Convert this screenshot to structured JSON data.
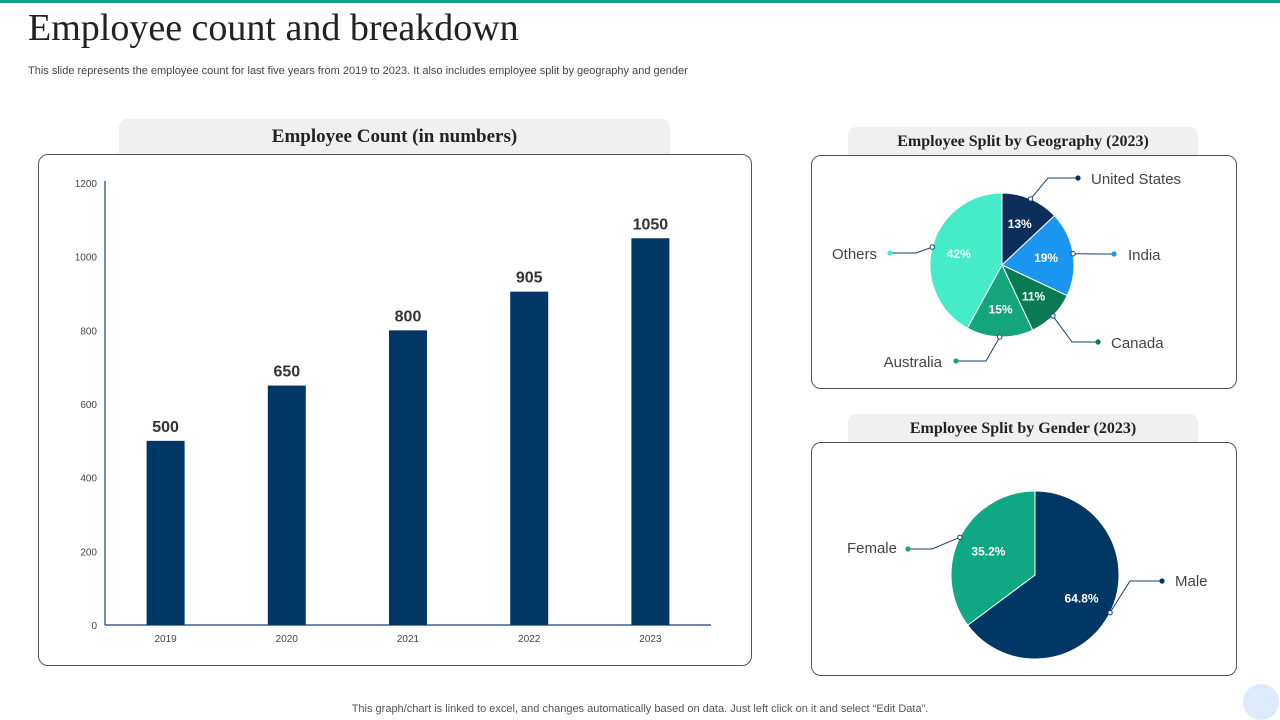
{
  "header": {
    "title": "Employee count and breakdown",
    "subtitle": "This slide represents the employee count for last five years from 2019 to 2023. It also includes employee split by geography and gender"
  },
  "footer": {
    "note": "This graph/chart is linked to excel,  and changes automatically based on data. Just left click on it and select “Edit Data”."
  },
  "colors": {
    "accent": "#0ea58a",
    "bar": "#003764",
    "us": "#0d2d5a",
    "india": "#1a96f0",
    "canada": "#0a7a55",
    "australia": "#14a57c",
    "others": "#46ecca",
    "male": "#003764",
    "female": "#10a883"
  },
  "chart_data": [
    {
      "type": "bar",
      "title": "Employee Count (in numbers)",
      "categories": [
        "2019",
        "2020",
        "2021",
        "2022",
        "2023"
      ],
      "values": [
        500,
        650,
        800,
        905,
        1050
      ],
      "data_labels": [
        "500",
        "650",
        "800",
        "905",
        "1050"
      ],
      "yticks": [
        "0",
        "200",
        "400",
        "600",
        "800",
        "1000",
        "1200"
      ],
      "ylim": [
        0,
        1200
      ],
      "xlabel": "",
      "ylabel": "",
      "grid": false
    },
    {
      "type": "pie",
      "title": "Employee Split by Geography (2023)",
      "slices": [
        {
          "name": "United States",
          "value": 13,
          "label": "13%"
        },
        {
          "name": "India",
          "value": 19,
          "label": "19%"
        },
        {
          "name": "Canada",
          "value": 11,
          "label": "11%"
        },
        {
          "name": "Australia",
          "value": 15,
          "label": "15%"
        },
        {
          "name": "Others",
          "value": 42,
          "label": "42%"
        }
      ]
    },
    {
      "type": "pie",
      "title": "Employee Split by Gender (2023)",
      "slices": [
        {
          "name": "Male",
          "value": 64.8,
          "label": "64.8%"
        },
        {
          "name": "Female",
          "value": 35.2,
          "label": "35.2%"
        }
      ]
    }
  ]
}
